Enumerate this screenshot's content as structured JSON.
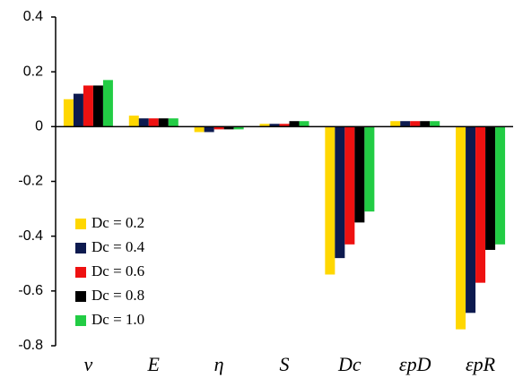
{
  "chart_data": {
    "type": "bar",
    "categories": [
      "ν",
      "E",
      "η",
      "S",
      "Dc",
      "εpD",
      "εpR"
    ],
    "series": [
      {
        "name": "Dc = 0.2",
        "color": "#ffd700",
        "values": [
          0.1,
          0.04,
          -0.02,
          0.01,
          -0.54,
          0.02,
          -0.74
        ]
      },
      {
        "name": "Dc = 0.4",
        "color": "#0d1a4f",
        "values": [
          0.12,
          0.03,
          -0.02,
          0.01,
          -0.48,
          0.02,
          -0.68
        ]
      },
      {
        "name": "Dc = 0.6",
        "color": "#ee1111",
        "values": [
          0.15,
          0.03,
          -0.01,
          0.01,
          -0.43,
          0.02,
          -0.57
        ]
      },
      {
        "name": "Dc = 0.8",
        "color": "#000000",
        "values": [
          0.15,
          0.03,
          -0.01,
          0.02,
          -0.35,
          0.02,
          -0.45
        ]
      },
      {
        "name": "Dc = 1.0",
        "color": "#22cc44",
        "values": [
          0.17,
          0.03,
          -0.01,
          0.02,
          -0.31,
          0.02,
          -0.43
        ]
      }
    ],
    "ylim": [
      -0.8,
      0.4
    ],
    "yticks": [
      -0.8,
      -0.6,
      -0.4,
      -0.2,
      0,
      0.2,
      0.4
    ],
    "legend": "left"
  }
}
